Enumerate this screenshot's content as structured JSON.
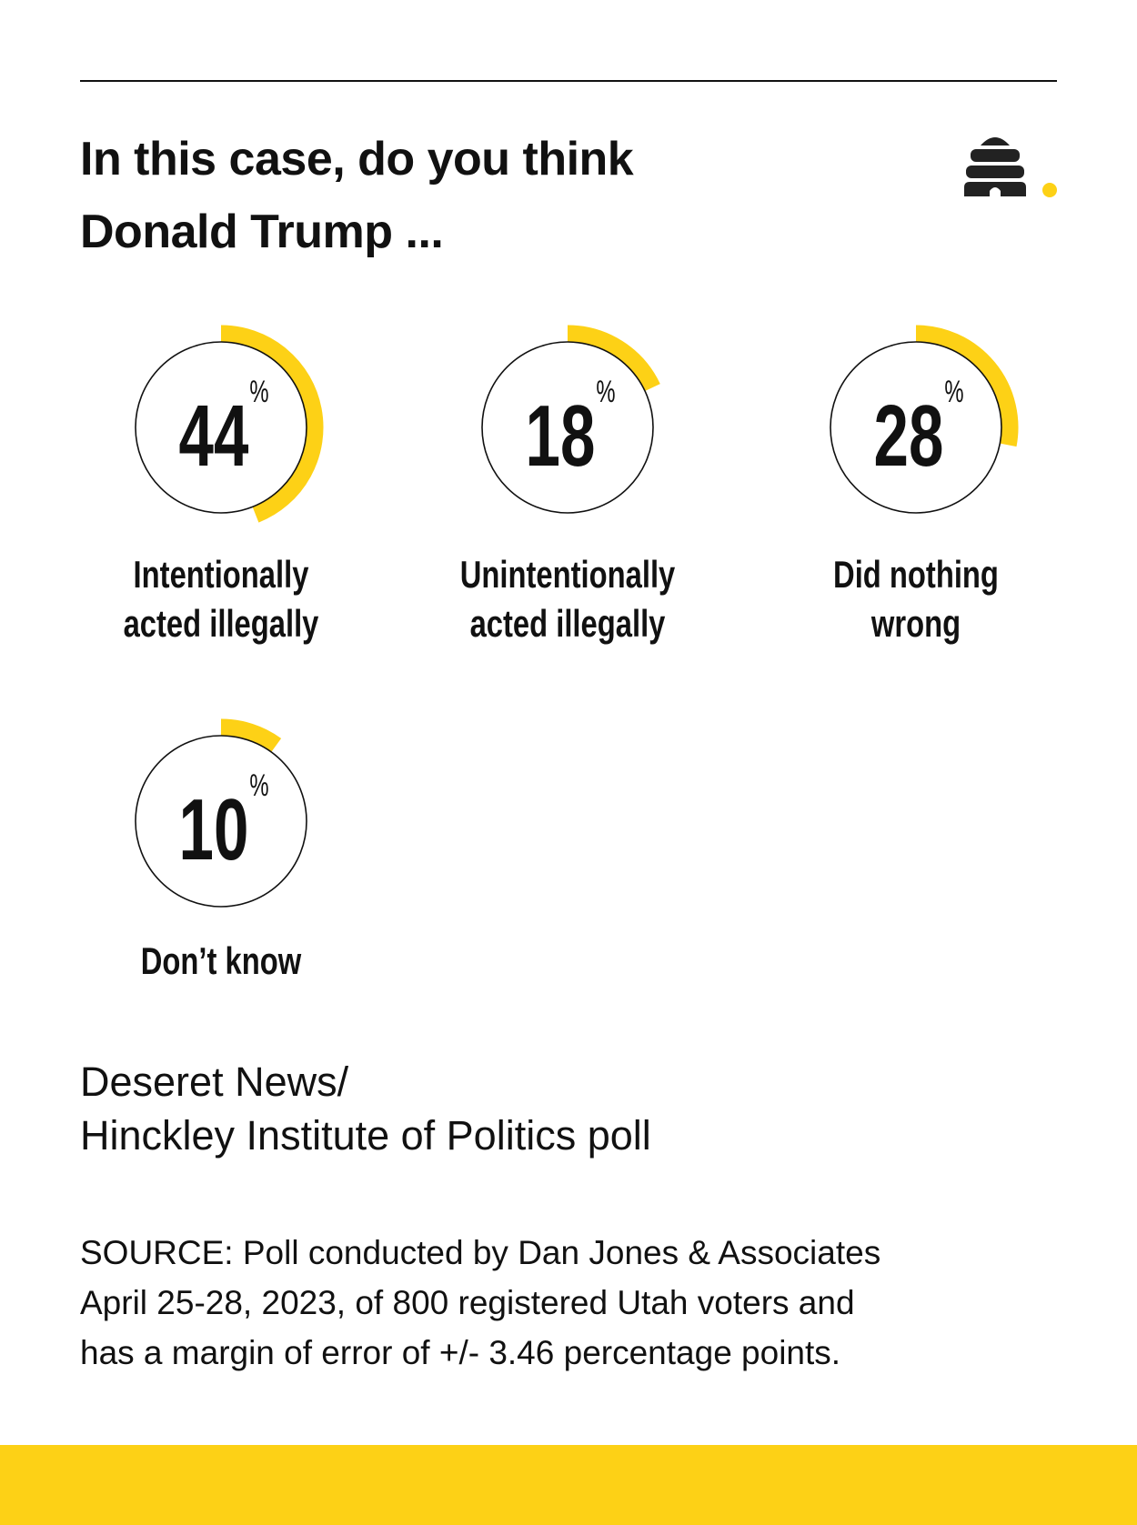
{
  "title": {
    "line1": "In this case, do you think",
    "line2": "Donald Trump ..."
  },
  "logo": {
    "icon": "beehive-logo-icon",
    "dot_color": "#FDD116"
  },
  "chart_data": {
    "type": "radial-progress",
    "unit": "%",
    "categories": [
      {
        "label_lines": [
          "Intentionally",
          "acted illegally"
        ],
        "value": 44
      },
      {
        "label_lines": [
          "Unintentionally",
          "acted illegally"
        ],
        "value": 18
      },
      {
        "label_lines": [
          "Did nothing",
          "wrong"
        ],
        "value": 28
      },
      {
        "label_lines": [
          "Don’t know"
        ],
        "value": 10
      }
    ],
    "range": [
      0,
      100
    ],
    "arc_color": "#FDD116",
    "ring_color": "#111111"
  },
  "poll": {
    "line1": "Deseret News/",
    "line2": "Hinckley Institute of Politics poll"
  },
  "source": {
    "line1": "SOURCE: Poll conducted by Dan Jones & Associates",
    "line2": "April 25-28, 2023, of 800 registered Utah voters and",
    "line3": "has a margin of error of +/- 3.46 percentage points."
  },
  "footer": {
    "color": "#FDD116"
  }
}
